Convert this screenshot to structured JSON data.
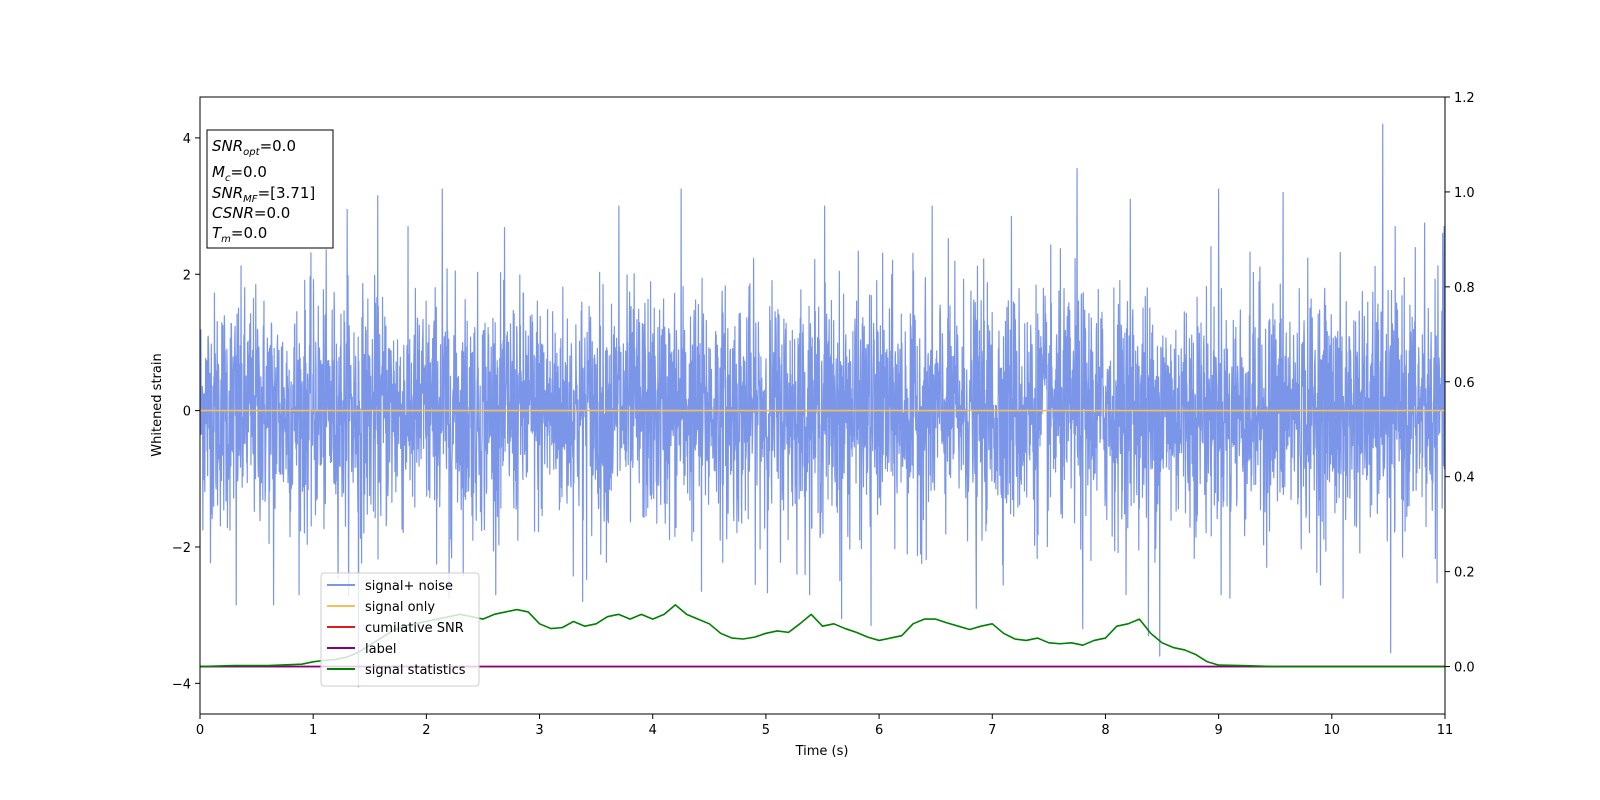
{
  "chart_data": {
    "type": "line",
    "title": "",
    "xlabel": "Time (s)",
    "ylabel": "Whitened strain",
    "y2label": "",
    "xlim": [
      0,
      11
    ],
    "ylim": [
      -4.45,
      4.6
    ],
    "y2lim": [
      -0.1,
      1.2
    ],
    "xticks": [
      0,
      1,
      2,
      3,
      4,
      5,
      6,
      7,
      8,
      9,
      10,
      11
    ],
    "yticks": [
      -4,
      -2,
      0,
      2,
      4
    ],
    "y2ticks": [
      0.0,
      0.2,
      0.4,
      0.6,
      0.8,
      1.0,
      1.2
    ],
    "xtick_labels": [
      "0",
      "1",
      "2",
      "3",
      "4",
      "5",
      "6",
      "7",
      "8",
      "9",
      "10",
      "11"
    ],
    "ytick_labels": [
      "−4",
      "−2",
      "0",
      "2",
      "4"
    ],
    "y2tick_labels": [
      "0.0",
      "0.2",
      "0.4",
      "0.6",
      "0.8",
      "1.0",
      "1.2"
    ],
    "grid": false,
    "legend_position": "lower-left",
    "annotation": {
      "lines": [
        {
          "base": "SNR",
          "sub": "opt",
          "rest": "=0.0"
        },
        {
          "base": "M",
          "sub": "c",
          "rest": "=0.0"
        },
        {
          "base": "SNR",
          "sub": "MF",
          "rest": "=[3.71]"
        },
        {
          "base": "CSNR",
          "sub": "",
          "rest": "=0.0"
        },
        {
          "base": "T",
          "sub": "m",
          "rest": "=0.0"
        }
      ]
    },
    "series": [
      {
        "name": "signal+ noise",
        "color": "#7b96e8",
        "axis": "left",
        "style": "noise",
        "noise_sigma": 0.85,
        "noise_samples": 4400,
        "peaks": [
          [
            0.32,
            -2.85
          ],
          [
            0.65,
            -2.85
          ],
          [
            1.3,
            2.95
          ],
          [
            1.4,
            -4.05
          ],
          [
            1.57,
            3.15
          ],
          [
            2.14,
            3.25
          ],
          [
            2.2,
            -2.75
          ],
          [
            3.38,
            -2.8
          ],
          [
            3.7,
            3.0
          ],
          [
            4.25,
            3.25
          ],
          [
            4.43,
            -2.65
          ],
          [
            5.52,
            3.0
          ],
          [
            5.67,
            -3.05
          ],
          [
            5.93,
            -3.15
          ],
          [
            6.47,
            3.0
          ],
          [
            6.86,
            -2.9
          ],
          [
            7.17,
            2.85
          ],
          [
            7.75,
            3.55
          ],
          [
            7.8,
            -3.2
          ],
          [
            8.22,
            3.1
          ],
          [
            8.38,
            -3.3
          ],
          [
            8.48,
            -3.6
          ],
          [
            9.0,
            3.25
          ],
          [
            9.1,
            -2.75
          ],
          [
            9.57,
            3.2
          ],
          [
            10.1,
            -2.75
          ],
          [
            10.45,
            4.2
          ],
          [
            10.52,
            -3.55
          ],
          [
            10.82,
            2.75
          ],
          [
            10.98,
            2.6
          ]
        ]
      },
      {
        "name": "signal only",
        "color": "#f5bf57",
        "axis": "left",
        "x": [
          0,
          11
        ],
        "y": [
          0,
          0
        ]
      },
      {
        "name": "cumilative SNR",
        "color": "#e41a1c",
        "axis": "right",
        "x": [
          0,
          11
        ],
        "y": [
          0,
          0
        ]
      },
      {
        "name": "label",
        "color": "#800080",
        "axis": "right",
        "x": [
          0,
          11
        ],
        "y": [
          0,
          0
        ]
      },
      {
        "name": "signal statistics",
        "color": "#008000",
        "axis": "right",
        "x": [
          0,
          0.3,
          0.6,
          0.9,
          1.0,
          1.1,
          1.2,
          1.3,
          1.4,
          1.5,
          1.6,
          1.7,
          1.8,
          1.9,
          2.0,
          2.1,
          2.2,
          2.3,
          2.4,
          2.5,
          2.6,
          2.7,
          2.8,
          2.9,
          3.0,
          3.1,
          3.2,
          3.3,
          3.4,
          3.5,
          3.6,
          3.7,
          3.8,
          3.9,
          4.0,
          4.1,
          4.2,
          4.3,
          4.4,
          4.5,
          4.6,
          4.7,
          4.8,
          4.9,
          5.0,
          5.1,
          5.2,
          5.3,
          5.4,
          5.5,
          5.6,
          5.7,
          5.8,
          5.9,
          6.0,
          6.1,
          6.2,
          6.3,
          6.4,
          6.5,
          6.6,
          6.7,
          6.8,
          6.9,
          7.0,
          7.1,
          7.2,
          7.3,
          7.4,
          7.5,
          7.6,
          7.7,
          7.8,
          7.9,
          8.0,
          8.1,
          8.2,
          8.3,
          8.4,
          8.5,
          8.6,
          8.7,
          8.8,
          8.9,
          9.0,
          9.2,
          9.5,
          10.0,
          10.5,
          11.0
        ],
        "y": [
          0.0,
          0.002,
          0.002,
          0.005,
          0.01,
          0.013,
          0.015,
          0.02,
          0.03,
          0.045,
          0.06,
          0.075,
          0.085,
          0.09,
          0.095,
          0.1,
          0.105,
          0.11,
          0.105,
          0.1,
          0.11,
          0.115,
          0.12,
          0.115,
          0.09,
          0.08,
          0.082,
          0.095,
          0.085,
          0.09,
          0.105,
          0.11,
          0.1,
          0.11,
          0.1,
          0.11,
          0.13,
          0.11,
          0.1,
          0.09,
          0.07,
          0.06,
          0.058,
          0.062,
          0.07,
          0.075,
          0.072,
          0.09,
          0.11,
          0.085,
          0.09,
          0.08,
          0.072,
          0.062,
          0.055,
          0.06,
          0.065,
          0.09,
          0.1,
          0.1,
          0.092,
          0.085,
          0.078,
          0.085,
          0.09,
          0.07,
          0.058,
          0.055,
          0.06,
          0.05,
          0.048,
          0.05,
          0.045,
          0.055,
          0.06,
          0.085,
          0.09,
          0.1,
          0.07,
          0.05,
          0.04,
          0.035,
          0.025,
          0.01,
          0.003,
          0.002,
          0.0,
          0.0,
          0.0,
          0.0
        ]
      }
    ]
  }
}
